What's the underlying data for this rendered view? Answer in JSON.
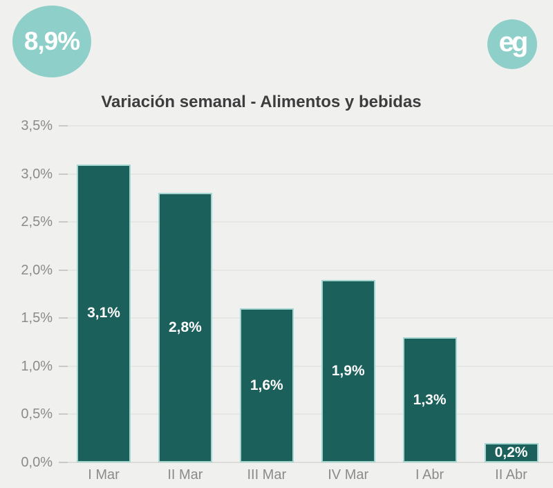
{
  "badge": {
    "value": "8,9%"
  },
  "logo": {
    "text": "eg"
  },
  "chart_data": {
    "type": "bar",
    "title": "Variación semanal - Alimentos y bebidas",
    "categories": [
      "I Mar",
      "II Mar",
      "III Mar",
      "IV Mar",
      "I Abr",
      "II Abr"
    ],
    "values": [
      3.1,
      2.8,
      1.6,
      1.9,
      1.3,
      0.2
    ],
    "bar_labels": [
      "3,1%",
      "2,8%",
      "1,6%",
      "1,9%",
      "1,3%",
      "0,2%"
    ],
    "xlabel": "",
    "ylabel": "",
    "ylim": [
      0,
      3.5
    ],
    "y_tick_step": 0.5,
    "y_tick_labels": [
      "0,0%",
      "0,5%",
      "1,0%",
      "1,5%",
      "2,0%",
      "2,5%",
      "3,0%",
      "3,5%"
    ],
    "grid": true,
    "legend_position": "none",
    "colors": {
      "bar_fill": "#1c605c",
      "bar_border": "#a2d5cf",
      "background": "#f0f0ef",
      "accent_circle": "#8ed0c9",
      "title_text": "#3d3d3d",
      "axis_text": "#8b8b8b",
      "bar_label_text": "#ffffff"
    }
  }
}
